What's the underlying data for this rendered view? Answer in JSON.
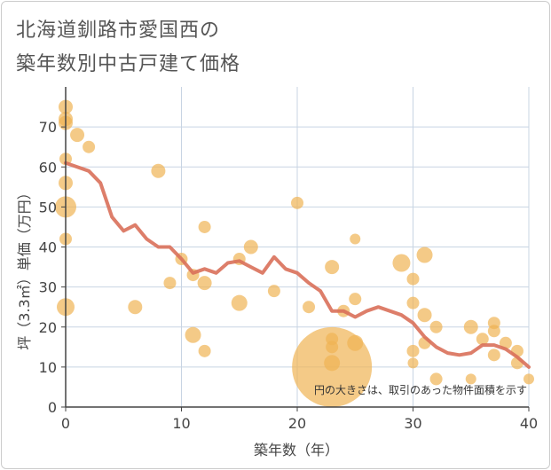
{
  "title": {
    "line1": "北海道釧路市愛国西の",
    "line2": "築年数別中古戸建て価格"
  },
  "colors": {
    "bubble": "#f0b454",
    "line": "#d9705a",
    "grid": "#c8d4e3",
    "axis": "#444444"
  },
  "chart_data": {
    "type": "scatter",
    "xlabel": "築年数（年）",
    "ylabel": "坪（3.3㎡）単価（万円）",
    "xlim": [
      0,
      40
    ],
    "ylim": [
      0,
      80
    ],
    "xticks": [
      0,
      10,
      20,
      30,
      40
    ],
    "yticks": [
      0,
      10,
      20,
      30,
      40,
      50,
      60,
      70
    ],
    "annotation": "円の大きさは、取引のあった物件面積を示す",
    "bubbles": [
      {
        "x": 0,
        "y": 75,
        "r": 8
      },
      {
        "x": 0,
        "y": 72,
        "r": 8
      },
      {
        "x": 0,
        "y": 71,
        "r": 8
      },
      {
        "x": 0,
        "y": 62,
        "r": 7
      },
      {
        "x": 0,
        "y": 56,
        "r": 8
      },
      {
        "x": 0,
        "y": 50,
        "r": 12
      },
      {
        "x": 0,
        "y": 42,
        "r": 7
      },
      {
        "x": 0,
        "y": 25,
        "r": 10
      },
      {
        "x": 1,
        "y": 68,
        "r": 8
      },
      {
        "x": 2,
        "y": 65,
        "r": 7
      },
      {
        "x": 6,
        "y": 25,
        "r": 8
      },
      {
        "x": 8,
        "y": 59,
        "r": 8
      },
      {
        "x": 9,
        "y": 31,
        "r": 7
      },
      {
        "x": 10,
        "y": 37,
        "r": 7
      },
      {
        "x": 11,
        "y": 18,
        "r": 9
      },
      {
        "x": 11,
        "y": 33,
        "r": 7
      },
      {
        "x": 12,
        "y": 45,
        "r": 7
      },
      {
        "x": 12,
        "y": 31,
        "r": 8
      },
      {
        "x": 12,
        "y": 14,
        "r": 7
      },
      {
        "x": 15,
        "y": 37,
        "r": 7
      },
      {
        "x": 15,
        "y": 26,
        "r": 9
      },
      {
        "x": 16,
        "y": 40,
        "r": 8
      },
      {
        "x": 18,
        "y": 29,
        "r": 7
      },
      {
        "x": 20,
        "y": 51,
        "r": 7
      },
      {
        "x": 21,
        "y": 25,
        "r": 7
      },
      {
        "x": 23,
        "y": 10,
        "r": 45
      },
      {
        "x": 23,
        "y": 35,
        "r": 8
      },
      {
        "x": 23,
        "y": 17,
        "r": 7
      },
      {
        "x": 23,
        "y": 15,
        "r": 7
      },
      {
        "x": 23,
        "y": 11,
        "r": 9
      },
      {
        "x": 24,
        "y": 24,
        "r": 7
      },
      {
        "x": 25,
        "y": 42,
        "r": 6
      },
      {
        "x": 25,
        "y": 27,
        "r": 7
      },
      {
        "x": 25,
        "y": 16,
        "r": 9
      },
      {
        "x": 29,
        "y": 36,
        "r": 10
      },
      {
        "x": 30,
        "y": 32,
        "r": 7
      },
      {
        "x": 30,
        "y": 26,
        "r": 7
      },
      {
        "x": 30,
        "y": 14,
        "r": 7
      },
      {
        "x": 30,
        "y": 11,
        "r": 6
      },
      {
        "x": 31,
        "y": 38,
        "r": 9
      },
      {
        "x": 31,
        "y": 23,
        "r": 8
      },
      {
        "x": 31,
        "y": 16,
        "r": 7
      },
      {
        "x": 32,
        "y": 20,
        "r": 7
      },
      {
        "x": 32,
        "y": 7,
        "r": 7
      },
      {
        "x": 35,
        "y": 20,
        "r": 8
      },
      {
        "x": 35,
        "y": 7,
        "r": 6
      },
      {
        "x": 36,
        "y": 17,
        "r": 7
      },
      {
        "x": 37,
        "y": 21,
        "r": 7
      },
      {
        "x": 37,
        "y": 19,
        "r": 7
      },
      {
        "x": 37,
        "y": 13,
        "r": 7
      },
      {
        "x": 38,
        "y": 16,
        "r": 7
      },
      {
        "x": 39,
        "y": 14,
        "r": 7
      },
      {
        "x": 39,
        "y": 11,
        "r": 7
      },
      {
        "x": 40,
        "y": 7,
        "r": 6
      }
    ],
    "trend": {
      "x": [
        0,
        1,
        2,
        3,
        4,
        5,
        6,
        7,
        8,
        9,
        10,
        11,
        12,
        13,
        14,
        15,
        16,
        17,
        18,
        19,
        20,
        21,
        22,
        23,
        24,
        25,
        26,
        27,
        28,
        29,
        30,
        31,
        32,
        33,
        34,
        35,
        36,
        37,
        38,
        39,
        40
      ],
      "y": [
        61,
        60,
        59,
        56,
        47.5,
        44,
        45.5,
        42,
        40,
        40,
        37,
        33.5,
        34.5,
        33.5,
        36,
        36.5,
        35,
        33.5,
        37.5,
        34.5,
        33.5,
        31,
        29,
        24,
        24,
        22.5,
        24,
        25,
        24,
        23,
        21,
        17.5,
        15,
        13.5,
        13,
        13.5,
        15.5,
        15.5,
        14.5,
        12.5,
        10
      ]
    }
  }
}
